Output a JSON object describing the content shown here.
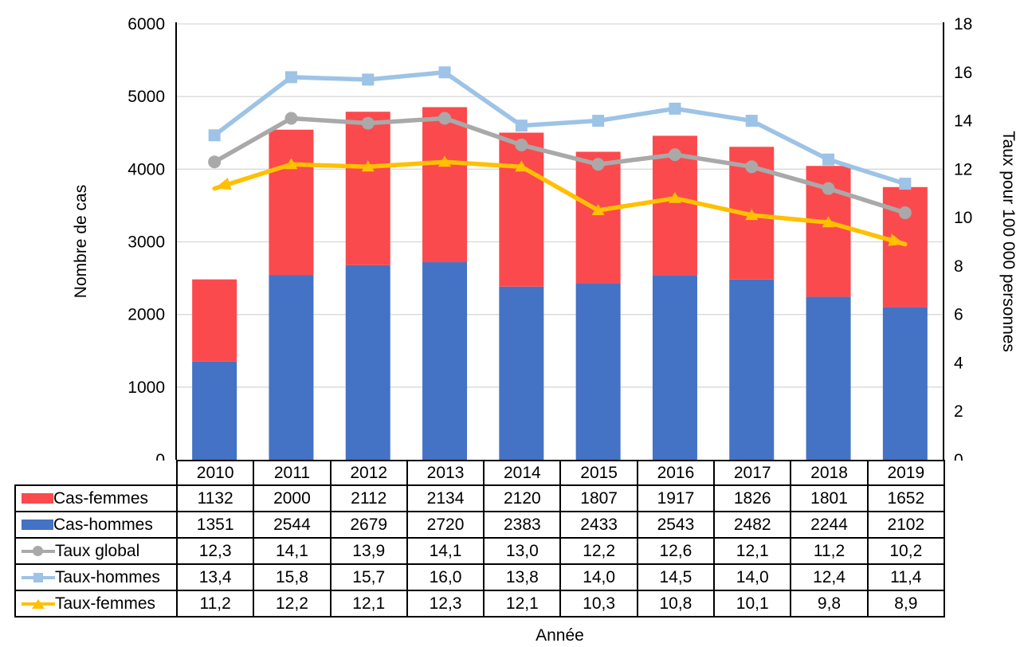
{
  "chart_data": {
    "type": "combo-stacked-bar-line",
    "title": "",
    "categories": [
      "2010",
      "2011",
      "2012",
      "2013",
      "2014",
      "2015",
      "2016",
      "2017",
      "2018",
      "2019"
    ],
    "bar_series": [
      {
        "name": "Cas-hommes",
        "color": "#4472C4",
        "stack_position": "bottom",
        "values": [
          1351,
          2544,
          2679,
          2720,
          2383,
          2433,
          2543,
          2482,
          2244,
          2102
        ]
      },
      {
        "name": "Cas-femmes",
        "color": "#FB4A4D",
        "stack_position": "top",
        "values": [
          1132,
          2000,
          2112,
          2134,
          2120,
          1807,
          1917,
          1826,
          1801,
          1652
        ]
      }
    ],
    "line_series": [
      {
        "name": "Taux global",
        "color": "#A9A9A9",
        "marker": "circle",
        "axis": "right",
        "end_arrows": false,
        "values": [
          12.3,
          14.1,
          13.9,
          14.1,
          13.0,
          12.2,
          12.6,
          12.1,
          11.2,
          10.2
        ]
      },
      {
        "name": "Taux-hommes",
        "color": "#9DC3E6",
        "marker": "square",
        "axis": "right",
        "end_arrows": false,
        "values": [
          13.4,
          15.8,
          15.7,
          16.0,
          13.8,
          14.0,
          14.5,
          14.0,
          12.4,
          11.4
        ]
      },
      {
        "name": "Taux-femmes",
        "color": "#FFC000",
        "marker": "triangle",
        "axis": "right",
        "end_arrows": true,
        "values": [
          11.2,
          12.2,
          12.1,
          12.3,
          12.1,
          10.3,
          10.8,
          10.1,
          9.8,
          8.9
        ]
      }
    ],
    "left_axis": {
      "label": "Nombre de cas",
      "min": 0,
      "max": 6000,
      "step": 1000,
      "ticks": [
        "0",
        "1000",
        "2000",
        "3000",
        "4000",
        "5000",
        "6000"
      ]
    },
    "right_axis": {
      "label": "Taux pour 100 000 personnes",
      "min": 0,
      "max": 18,
      "step": 2,
      "ticks": [
        "0",
        "2",
        "4",
        "6",
        "8",
        "10",
        "12",
        "14",
        "16",
        "18"
      ]
    },
    "x_axis": {
      "label": "Année"
    },
    "grid": "horizontal",
    "gridline_color": "#D9D9D9",
    "axis_line_color": "#000000",
    "legend_position": "table-rows-left"
  },
  "table": {
    "rows": [
      {
        "label": "Cas-femmes",
        "swatch": "bar",
        "color": "#FB4A4D",
        "values": [
          "1132",
          "2000",
          "2112",
          "2134",
          "2120",
          "1807",
          "1917",
          "1826",
          "1801",
          "1652"
        ]
      },
      {
        "label": "Cas-hommes",
        "swatch": "bar",
        "color": "#4472C4",
        "values": [
          "1351",
          "2544",
          "2679",
          "2720",
          "2383",
          "2433",
          "2543",
          "2482",
          "2244",
          "2102"
        ]
      },
      {
        "label": "Taux global",
        "swatch": "line-circle",
        "color": "#A9A9A9",
        "values": [
          "12,3",
          "14,1",
          "13,9",
          "14,1",
          "13,0",
          "12,2",
          "12,6",
          "12,1",
          "11,2",
          "10,2"
        ]
      },
      {
        "label": "Taux-hommes",
        "swatch": "line-square",
        "color": "#9DC3E6",
        "values": [
          "13,4",
          "15,8",
          "15,7",
          "16,0",
          "13,8",
          "14,0",
          "14,5",
          "14,0",
          "12,4",
          "11,4"
        ]
      },
      {
        "label": "Taux-femmes",
        "swatch": "line-triangle",
        "color": "#FFC000",
        "values": [
          "11,2",
          "12,2",
          "12,1",
          "12,3",
          "12,1",
          "10,3",
          "10,8",
          "10,1",
          "9,8",
          "8,9"
        ]
      }
    ]
  }
}
